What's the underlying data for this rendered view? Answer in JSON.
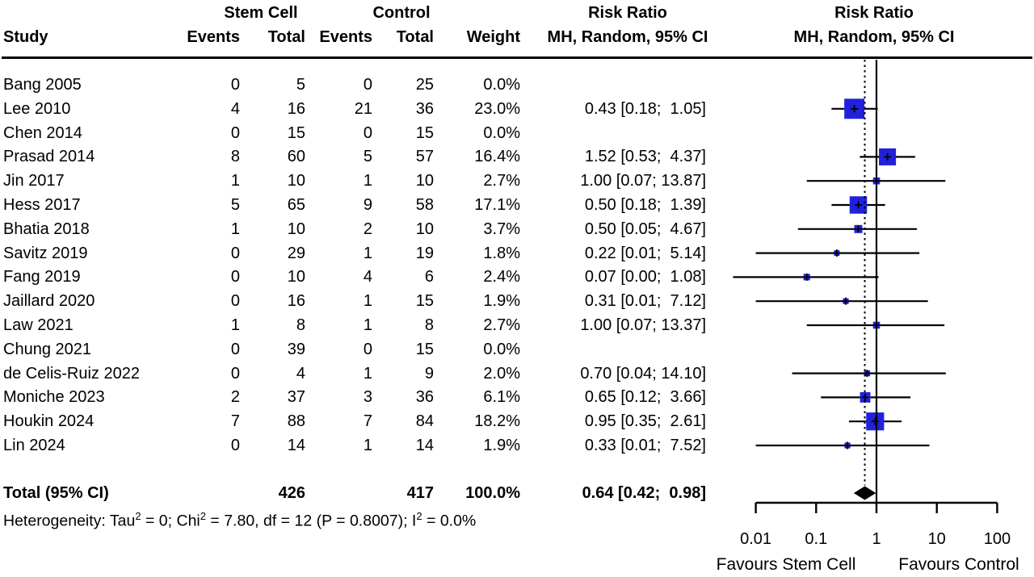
{
  "header": {
    "study": "Study",
    "group_stem": "Stem Cell",
    "group_control": "Control",
    "risk_ratio": "Risk Ratio",
    "method": "MH, Random, 95% CI",
    "events": "Events",
    "total": "Total",
    "weight": "Weight"
  },
  "footer": {
    "total_label": "Total (95% CI)",
    "total_stem": "426",
    "total_control": "417",
    "total_weight": "100.0%",
    "total_rr_ci": "0.64 [0.42;  0.98]",
    "heterogeneity_segments": [
      {
        "text": "Heterogeneity: Tau"
      },
      {
        "sup": "2"
      },
      {
        "text": " = 0; Chi"
      },
      {
        "sup": "2"
      },
      {
        "text": " = 7.80, df = 12 (P = 0.8007); I"
      },
      {
        "sup": "2"
      },
      {
        "text": " = 0.0%"
      }
    ]
  },
  "chart_data": {
    "type": "forest",
    "x_scale": "log",
    "title": "Risk Ratio",
    "method": "MH, Random, 95% CI",
    "axis": {
      "ticks": [
        0.01,
        0.1,
        1,
        10,
        100
      ],
      "tick_labels": [
        "0.01",
        "0.1",
        "1",
        "10",
        "100"
      ],
      "favours_left": "Favours Stem Cell",
      "favours_right": "Favours Control"
    },
    "null_value": 1,
    "pooled": {
      "rr": 0.64,
      "lo": 0.42,
      "hi": 0.98
    },
    "colors": {
      "square": "#2121DC",
      "line": "#000000",
      "diamond": "#000000"
    },
    "studies": [
      {
        "study": "Bang 2005",
        "stem_events": "0",
        "stem_total": "5",
        "control_events": "0",
        "control_total": "25",
        "weight": "0.0%",
        "weight_value": 0.0,
        "rr_ci": "",
        "rr": null,
        "lo": null,
        "hi": null
      },
      {
        "study": "Lee 2010",
        "stem_events": "4",
        "stem_total": "16",
        "control_events": "21",
        "control_total": "36",
        "weight": "23.0%",
        "weight_value": 23.0,
        "rr_ci": "0.43 [0.18;  1.05]",
        "rr": 0.43,
        "lo": 0.18,
        "hi": 1.05
      },
      {
        "study": "Chen 2014",
        "stem_events": "0",
        "stem_total": "15",
        "control_events": "0",
        "control_total": "15",
        "weight": "0.0%",
        "weight_value": 0.0,
        "rr_ci": "",
        "rr": null,
        "lo": null,
        "hi": null
      },
      {
        "study": "Prasad 2014",
        "stem_events": "8",
        "stem_total": "60",
        "control_events": "5",
        "control_total": "57",
        "weight": "16.4%",
        "weight_value": 16.4,
        "rr_ci": "1.52 [0.53;  4.37]",
        "rr": 1.52,
        "lo": 0.53,
        "hi": 4.37
      },
      {
        "study": "Jin 2017",
        "stem_events": "1",
        "stem_total": "10",
        "control_events": "1",
        "control_total": "10",
        "weight": "2.7%",
        "weight_value": 2.7,
        "rr_ci": "1.00 [0.07; 13.87]",
        "rr": 1.0,
        "lo": 0.07,
        "hi": 13.87
      },
      {
        "study": "Hess 2017",
        "stem_events": "5",
        "stem_total": "65",
        "control_events": "9",
        "control_total": "58",
        "weight": "17.1%",
        "weight_value": 17.1,
        "rr_ci": "0.50 [0.18;  1.39]",
        "rr": 0.5,
        "lo": 0.18,
        "hi": 1.39
      },
      {
        "study": "Bhatia 2018",
        "stem_events": "1",
        "stem_total": "10",
        "control_events": "2",
        "control_total": "10",
        "weight": "3.7%",
        "weight_value": 3.7,
        "rr_ci": "0.50 [0.05;  4.67]",
        "rr": 0.5,
        "lo": 0.05,
        "hi": 4.67
      },
      {
        "study": "Savitz 2019",
        "stem_events": "0",
        "stem_total": "29",
        "control_events": "1",
        "control_total": "19",
        "weight": "1.8%",
        "weight_value": 1.8,
        "rr_ci": "0.22 [0.01;  5.14]",
        "rr": 0.22,
        "lo": 0.01,
        "hi": 5.14
      },
      {
        "study": "Fang 2019",
        "stem_events": "0",
        "stem_total": "10",
        "control_events": "4",
        "control_total": "6",
        "weight": "2.4%",
        "weight_value": 2.4,
        "rr_ci": "0.07 [0.00;  1.08]",
        "rr": 0.07,
        "lo": 0.0,
        "lo_plot": 0.0042,
        "hi": 1.08
      },
      {
        "study": "Jaillard 2020",
        "stem_events": "0",
        "stem_total": "16",
        "control_events": "1",
        "control_total": "15",
        "weight": "1.9%",
        "weight_value": 1.9,
        "rr_ci": "0.31 [0.01;  7.12]",
        "rr": 0.31,
        "lo": 0.01,
        "hi": 7.12
      },
      {
        "study": "Law 2021",
        "stem_events": "1",
        "stem_total": "8",
        "control_events": "1",
        "control_total": "8",
        "weight": "2.7%",
        "weight_value": 2.7,
        "rr_ci": "1.00 [0.07; 13.37]",
        "rr": 1.0,
        "lo": 0.07,
        "hi": 13.37
      },
      {
        "study": "Chung 2021",
        "stem_events": "0",
        "stem_total": "39",
        "control_events": "0",
        "control_total": "15",
        "weight": "0.0%",
        "weight_value": 0.0,
        "rr_ci": "",
        "rr": null,
        "lo": null,
        "hi": null
      },
      {
        "study": "de Celis-Ruiz 2022",
        "stem_events": "0",
        "stem_total": "4",
        "control_events": "1",
        "control_total": "9",
        "weight": "2.0%",
        "weight_value": 2.0,
        "rr_ci": "0.70 [0.04; 14.10]",
        "rr": 0.7,
        "lo": 0.04,
        "hi": 14.1
      },
      {
        "study": "Moniche 2023",
        "stem_events": "2",
        "stem_total": "37",
        "control_events": "3",
        "control_total": "36",
        "weight": "6.1%",
        "weight_value": 6.1,
        "rr_ci": "0.65 [0.12;  3.66]",
        "rr": 0.65,
        "lo": 0.12,
        "hi": 3.66
      },
      {
        "study": "Houkin 2024",
        "stem_events": "7",
        "stem_total": "88",
        "control_events": "7",
        "control_total": "84",
        "weight": "18.2%",
        "weight_value": 18.2,
        "rr_ci": "0.95 [0.35;  2.61]",
        "rr": 0.95,
        "lo": 0.35,
        "hi": 2.61
      },
      {
        "study": "Lin 2024",
        "stem_events": "0",
        "stem_total": "14",
        "control_events": "1",
        "control_total": "14",
        "weight": "1.9%",
        "weight_value": 1.9,
        "rr_ci": "0.33 [0.01;  7.52]",
        "rr": 0.33,
        "lo": 0.01,
        "hi": 7.52
      }
    ]
  }
}
